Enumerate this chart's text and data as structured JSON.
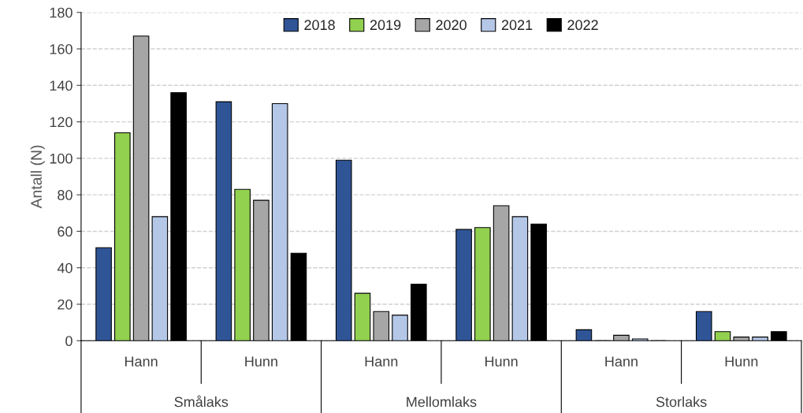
{
  "chart_data": {
    "type": "bar",
    "ylabel": "Antall (N)",
    "categories": [
      "Hann",
      "Hunn",
      "Hann",
      "Hunn",
      "Hann",
      "Hunn"
    ],
    "annotations": [
      "Smålaks",
      "Mellomlaks",
      "Storlaks"
    ],
    "series": [
      {
        "name": "2018",
        "color": "#2f5597",
        "values": [
          51,
          131,
          99,
          61,
          6,
          16
        ]
      },
      {
        "name": "2019",
        "color": "#92d050",
        "values": [
          114,
          83,
          26,
          62,
          0,
          5
        ]
      },
      {
        "name": "2020",
        "color": "#a6a6a6",
        "values": [
          167,
          77,
          16,
          74,
          3,
          2
        ]
      },
      {
        "name": "2021",
        "color": "#b4c7e7",
        "values": [
          68,
          130,
          14,
          68,
          1,
          2
        ]
      },
      {
        "name": "2022",
        "color": "#000000",
        "values": [
          136,
          48,
          31,
          64,
          0,
          5
        ]
      }
    ],
    "ylim": [
      0,
      180
    ],
    "yticks": [
      0,
      20,
      40,
      60,
      80,
      100,
      120,
      140,
      160,
      180
    ],
    "grid": "y",
    "legend": "top"
  }
}
